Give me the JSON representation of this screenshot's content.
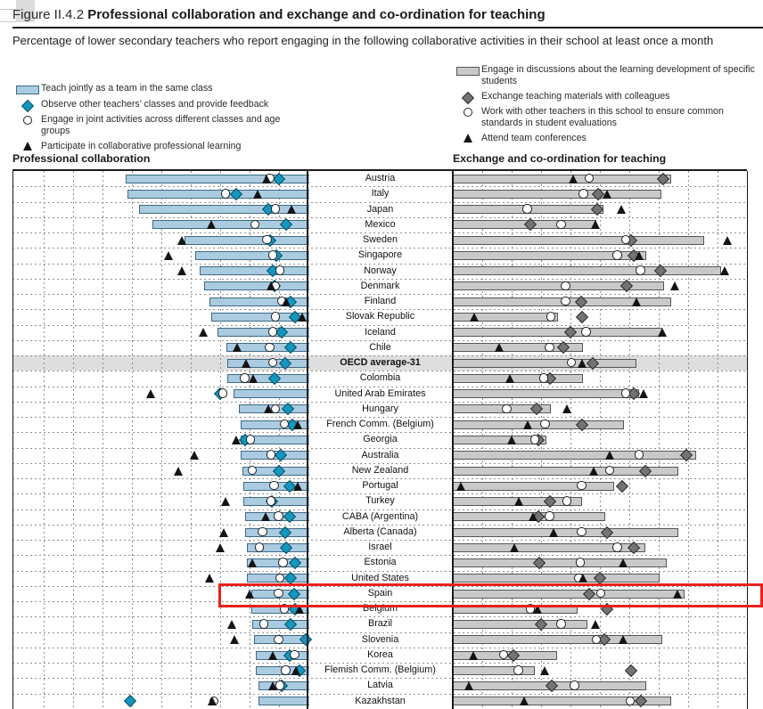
{
  "header": {
    "figure_label": "Figure II.4.2",
    "title": "Professional collaboration and exchange and co-ordination for teaching",
    "subtitle": "Percentage of lower secondary teachers who report engaging in the following collaborative activities in their school at least once a month"
  },
  "panels": {
    "left": {
      "heading": "Professional collaboration",
      "legend": [
        {
          "marker": "blue-bar-swatch",
          "label": "Teach jointly as a team in the same class"
        },
        {
          "marker": "teal-diamond",
          "label": "Observe other teachers’ classes and provide feedback"
        },
        {
          "marker": "white-circle",
          "label": "Engage in joint activities across different classes and age groups"
        },
        {
          "marker": "black-triangle",
          "label": "Participate in collaborative professional learning"
        }
      ]
    },
    "right": {
      "heading": "Exchange and co-ordination for teaching",
      "legend": [
        {
          "marker": "gray-bar-swatch",
          "label": "Engage in discussions about the learning development of specific students"
        },
        {
          "marker": "dark-gray-diamond",
          "label": "Exchange teaching materials with colleagues"
        },
        {
          "marker": "white-circle",
          "label": "Work with other teachers in this school to ensure common standards in student evaluations"
        },
        {
          "marker": "black-triangle",
          "label": "Attend team conferences"
        }
      ]
    }
  },
  "colors": {
    "blue_bar": "#abcbe0",
    "blue_bar_border": "#3e6b87",
    "gray_bar": "#c9c9c9",
    "gray_bar_border": "#565656",
    "teal_diamond": "#1497bf",
    "dark_gray_diamond": "#747474",
    "triangle": "#141414",
    "highlight_box": "#e8211d",
    "oecd_band": "#dedede"
  },
  "chart_data": {
    "type": "bar",
    "subtype": "back-to-back horizontal bars with point markers",
    "unit": "percentage of teachers",
    "xlim": [
      0,
      100
    ],
    "grid_step": 10,
    "highlighted_country": "Spain",
    "left_panel_series": [
      "Teach jointly as a team in the same class (bar)",
      "Observe other teachers' classes and provide feedback (diamond)",
      "Engage in joint activities across different classes and age groups (circle)",
      "Participate in collaborative professional learning (triangle)"
    ],
    "right_panel_series": [
      "Engage in discussions about the learning development of specific students (bar)",
      "Exchange teaching materials with colleagues (diamond)",
      "Work with other teachers in this school to ensure common standards in student evaluations (circle)",
      "Attend team conferences (triangle)"
    ],
    "rows": [
      {
        "country": "Austria",
        "bold": false,
        "left": {
          "bar": 62,
          "diamond": 10,
          "circle": 13,
          "triangle": 14
        },
        "right": {
          "bar": 74,
          "diamond": 71.5,
          "circle": 46.5,
          "triangle": 41
        }
      },
      {
        "country": "Italy",
        "bold": false,
        "left": {
          "bar": 61.5,
          "diamond": 24.5,
          "circle": 28,
          "triangle": 17
        },
        "right": {
          "bar": 70.5,
          "diamond": 49.5,
          "circle": 44.5,
          "triangle": 52.5
        }
      },
      {
        "country": "Japan",
        "bold": false,
        "left": {
          "bar": 57.5,
          "diamond": 13.5,
          "circle": 11,
          "triangle": 5.5
        },
        "right": {
          "bar": 51,
          "diamond": 49,
          "circle": 25.5,
          "triangle": 57.5
        }
      },
      {
        "country": "Mexico",
        "bold": false,
        "left": {
          "bar": 53,
          "diamond": 7.5,
          "circle": 18,
          "triangle": 33
        },
        "right": {
          "bar": 48.5,
          "diamond": 26.5,
          "circle": 37,
          "triangle": 48.5
        }
      },
      {
        "country": "Sweden",
        "bold": false,
        "left": {
          "bar": 42,
          "diamond": 13,
          "circle": 14,
          "triangle": 43
        },
        "right": {
          "bar": 85,
          "diamond": 60.5,
          "circle": 59,
          "triangle": 93.5
        }
      },
      {
        "country": "Singapore",
        "bold": false,
        "left": {
          "bar": 38.5,
          "diamond": 11,
          "circle": 12,
          "triangle": 47.5
        },
        "right": {
          "bar": 65.5,
          "diamond": 61.5,
          "circle": 56,
          "triangle": 63.5
        }
      },
      {
        "country": "Norway",
        "bold": false,
        "left": {
          "bar": 37,
          "diamond": 12,
          "circle": 9.5,
          "triangle": 43
        },
        "right": {
          "bar": 91,
          "diamond": 70.5,
          "circle": 64,
          "triangle": 92.5
        }
      },
      {
        "country": "Denmark",
        "bold": false,
        "left": {
          "bar": 35.5,
          "diamond": 11.5,
          "circle": 11,
          "triangle": 12.5
        },
        "right": {
          "bar": 71.5,
          "diamond": 59,
          "circle": 38.5,
          "triangle": 75.5
        }
      },
      {
        "country": "Finland",
        "bold": false,
        "left": {
          "bar": 33.5,
          "diamond": 6,
          "circle": 9,
          "triangle": 7.5
        },
        "right": {
          "bar": 74,
          "diamond": 43.5,
          "circle": 38.5,
          "triangle": 62.5
        }
      },
      {
        "country": "Slovak Republic",
        "bold": false,
        "left": {
          "bar": 33,
          "diamond": 4.5,
          "circle": 11,
          "triangle": 2
        },
        "right": {
          "bar": 35.5,
          "diamond": 44,
          "circle": 33.5,
          "triangle": 7.5
        }
      },
      {
        "country": "Iceland",
        "bold": false,
        "left": {
          "bar": 31,
          "diamond": 9,
          "circle": 12,
          "triangle": 35.5
        },
        "right": {
          "bar": 71,
          "diamond": 40,
          "circle": 45.5,
          "triangle": 71.5
        }
      },
      {
        "country": "Chile",
        "bold": false,
        "left": {
          "bar": 28,
          "diamond": 6,
          "circle": 13,
          "triangle": 24
        },
        "right": {
          "bar": 44,
          "diamond": 37.5,
          "circle": 33,
          "triangle": 16
        }
      },
      {
        "country": "OECD average-31",
        "bold": true,
        "left": {
          "bar": 27.5,
          "diamond": 8,
          "circle": 12,
          "triangle": 21
        },
        "right": {
          "bar": 62,
          "diamond": 47.5,
          "circle": 40.5,
          "triangle": 44
        }
      },
      {
        "country": "Colombia",
        "bold": false,
        "left": {
          "bar": 27.5,
          "diamond": 11.5,
          "circle": 21.5,
          "triangle": 18.5
        },
        "right": {
          "bar": 44,
          "diamond": 33,
          "circle": 31,
          "triangle": 19.5
        }
      },
      {
        "country": "United Arab Emirates",
        "bold": false,
        "left": {
          "bar": 25.5,
          "diamond": 30,
          "circle": 29,
          "triangle": 53.5
        },
        "right": {
          "bar": 63,
          "diamond": 61.5,
          "circle": 59,
          "triangle": 65
        }
      },
      {
        "country": "Hungary",
        "bold": false,
        "left": {
          "bar": 23.5,
          "diamond": 7,
          "circle": 11,
          "triangle": 13.5
        },
        "right": {
          "bar": 33,
          "diamond": 28.5,
          "circle": 18.5,
          "triangle": 39
        }
      },
      {
        "country": "French Comm. (Belgium)",
        "bold": false,
        "left": {
          "bar": 23,
          "diamond": 5.5,
          "circle": 8,
          "triangle": 3.5
        },
        "right": {
          "bar": 58,
          "diamond": 44,
          "circle": 31.5,
          "triangle": 25.5
        }
      },
      {
        "country": "Georgia",
        "bold": false,
        "left": {
          "bar": 23,
          "diamond": 21.5,
          "circle": 19.5,
          "triangle": 24.5
        },
        "right": {
          "bar": 31.5,
          "diamond": 29,
          "circle": 28,
          "triangle": 20
        }
      },
      {
        "country": "Australia",
        "bold": false,
        "left": {
          "bar": 23,
          "diamond": 9.5,
          "circle": 12.5,
          "triangle": 38.5
        },
        "right": {
          "bar": 82.5,
          "diamond": 79.5,
          "circle": 63.5,
          "triangle": 53.5
        }
      },
      {
        "country": "New Zealand",
        "bold": false,
        "left": {
          "bar": 22.5,
          "diamond": 10,
          "circle": 19,
          "triangle": 44
        },
        "right": {
          "bar": 76.5,
          "diamond": 65.5,
          "circle": 53.5,
          "triangle": 48
        }
      },
      {
        "country": "Portugal",
        "bold": false,
        "left": {
          "bar": 22,
          "diamond": 6.5,
          "circle": 11.5,
          "triangle": 3.5
        },
        "right": {
          "bar": 54.5,
          "diamond": 57.5,
          "circle": 44,
          "triangle": 3
        }
      },
      {
        "country": "Turkey",
        "bold": false,
        "left": {
          "bar": 22,
          "diamond": 12.5,
          "circle": 12.5,
          "triangle": 28
        },
        "right": {
          "bar": 43.5,
          "diamond": 33,
          "circle": 39,
          "triangle": 22.5
        }
      },
      {
        "country": "CABA (Argentina)",
        "bold": false,
        "left": {
          "bar": 21.5,
          "diamond": 6.5,
          "circle": 10,
          "triangle": 14.5
        },
        "right": {
          "bar": 51.5,
          "diamond": 29,
          "circle": 33,
          "triangle": 27.5
        }
      },
      {
        "country": "Alberta (Canada)",
        "bold": false,
        "left": {
          "bar": 21.5,
          "diamond": 8,
          "circle": 15.5,
          "triangle": 28.5
        },
        "right": {
          "bar": 76.5,
          "diamond": 52.5,
          "circle": 44,
          "triangle": 34.5
        }
      },
      {
        "country": "Israel",
        "bold": false,
        "left": {
          "bar": 21,
          "diamond": 7.5,
          "circle": 16.5,
          "triangle": 30
        },
        "right": {
          "bar": 65,
          "diamond": 61.5,
          "circle": 56,
          "triangle": 21
        }
      },
      {
        "country": "Estonia",
        "bold": false,
        "left": {
          "bar": 21,
          "diamond": 4.5,
          "circle": 8.5,
          "triangle": 19
        },
        "right": {
          "bar": 72.5,
          "diamond": 29.5,
          "circle": 43.5,
          "triangle": 58
        }
      },
      {
        "country": "United States",
        "bold": false,
        "left": {
          "bar": 21,
          "diamond": 6,
          "circle": 9.5,
          "triangle": 33.5
        },
        "right": {
          "bar": 70,
          "diamond": 50,
          "circle": 43,
          "triangle": 44.5
        }
      },
      {
        "country": "Spain",
        "bold": false,
        "left": {
          "bar": 19.5,
          "diamond": 5,
          "circle": 10,
          "triangle": 20
        },
        "right": {
          "bar": 78.5,
          "diamond": 46.5,
          "circle": 50.5,
          "triangle": 76.5
        }
      },
      {
        "country": "Belgium",
        "bold": false,
        "left": {
          "bar": 19.5,
          "diamond": 4.5,
          "circle": 8,
          "triangle": 3
        },
        "right": {
          "bar": 42,
          "diamond": 52.5,
          "circle": 26.5,
          "triangle": 29
        }
      },
      {
        "country": "Brazil",
        "bold": false,
        "left": {
          "bar": 19,
          "diamond": 6,
          "circle": 15,
          "triangle": 26
        },
        "right": {
          "bar": 45.5,
          "diamond": 30,
          "circle": 37,
          "triangle": 48.5
        }
      },
      {
        "country": "Slovenia",
        "bold": false,
        "left": {
          "bar": 18.5,
          "diamond": 1,
          "circle": 10,
          "triangle": 25
        },
        "right": {
          "bar": 71,
          "diamond": 51.5,
          "circle": 49,
          "triangle": 58
        }
      },
      {
        "country": "Korea",
        "bold": false,
        "left": {
          "bar": 18,
          "diamond": 6.5,
          "circle": 4.5,
          "triangle": 12
        },
        "right": {
          "bar": 35,
          "diamond": 20.5,
          "circle": 17.5,
          "triangle": 7
        }
      },
      {
        "country": "Flemish Comm. (Belgium)",
        "bold": false,
        "left": {
          "bar": 18,
          "diamond": 3,
          "circle": 7.5,
          "triangle": 4
        },
        "right": {
          "bar": 27.5,
          "diamond": 60.5,
          "circle": 22.5,
          "triangle": 31.5
        }
      },
      {
        "country": "Latvia",
        "bold": false,
        "left": {
          "bar": 17,
          "diamond": 9,
          "circle": 9.5,
          "triangle": 12
        },
        "right": {
          "bar": 65.5,
          "diamond": 33.5,
          "circle": 41.5,
          "triangle": 5.5
        }
      },
      {
        "country": "Kazakhstan",
        "bold": false,
        "left": {
          "bar": 17,
          "diamond": 60.5,
          "circle": 32,
          "triangle": 32.5
        },
        "right": {
          "bar": 74,
          "diamond": 64,
          "circle": 60.5,
          "triangle": 24.5
        }
      }
    ]
  }
}
